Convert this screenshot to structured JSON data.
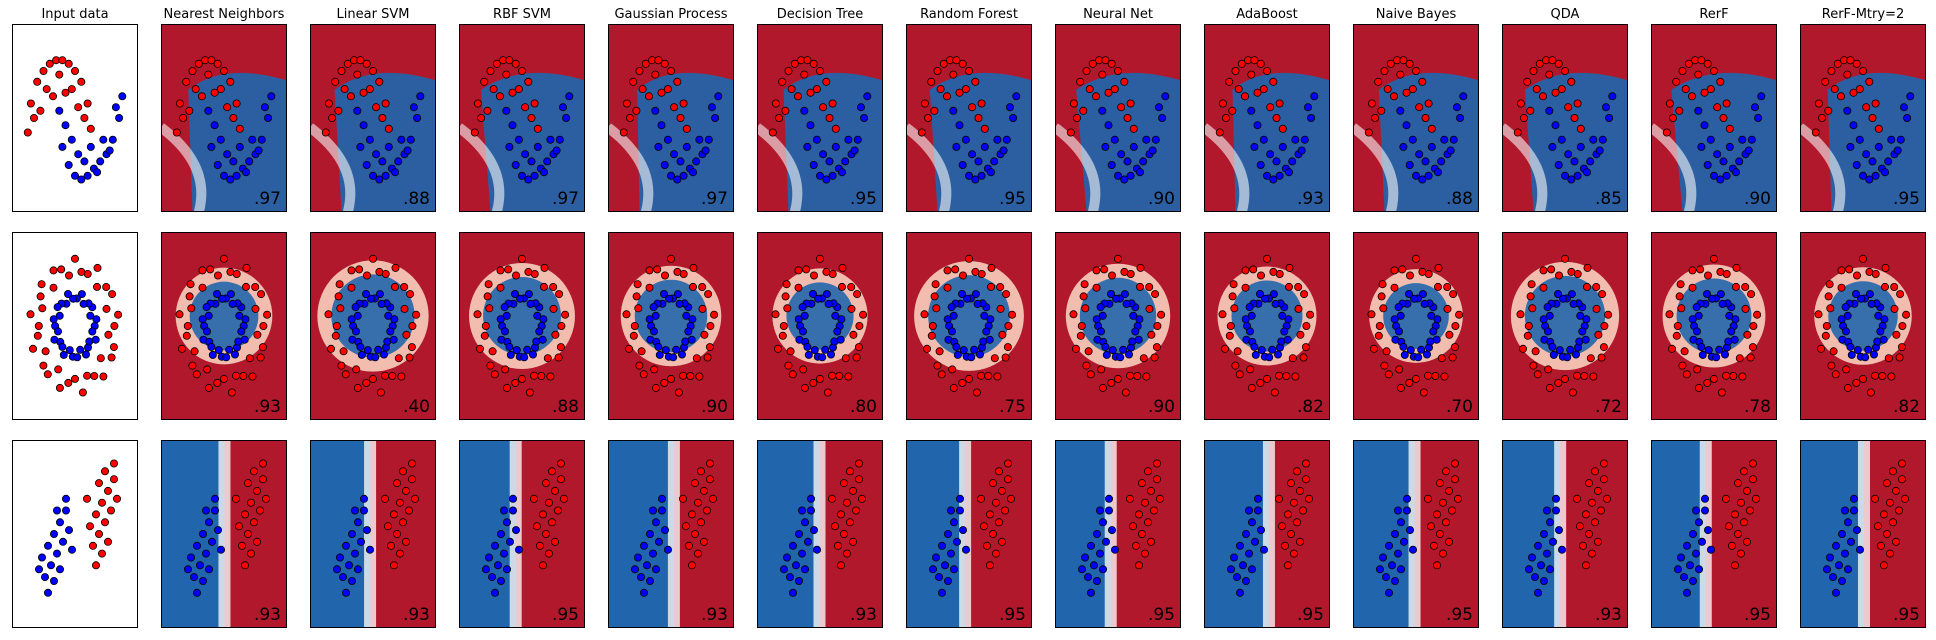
{
  "figure": {
    "title": "",
    "colors": {
      "class_red": "#ff0000",
      "class_blue": "#0000ff",
      "bg_red": "#b2182b",
      "bg_blue": "#2166ac"
    }
  },
  "chart_data": {
    "type": "scatter",
    "grid": false,
    "columns": [
      "Input data",
      "Nearest Neighbors",
      "Linear SVM",
      "RBF SVM",
      "Gaussian Process",
      "Decision Tree",
      "Random Forest",
      "Neural Net",
      "AdaBoost",
      "Naive Bayes",
      "QDA",
      "RerF",
      "RerF-Mtry=2"
    ],
    "rows": [
      {
        "dataset": "moons",
        "scores": [
          "",
          ".97",
          ".88",
          ".97",
          ".97",
          ".95",
          ".95",
          ".90",
          ".93",
          ".88",
          ".85",
          ".90",
          ".95"
        ]
      },
      {
        "dataset": "circles",
        "scores": [
          "",
          ".93",
          ".40",
          ".88",
          ".90",
          ".80",
          ".75",
          ".90",
          ".82",
          ".70",
          ".72",
          ".78",
          ".82"
        ]
      },
      {
        "dataset": "linear",
        "scores": [
          "",
          ".93",
          ".93",
          ".95",
          ".93",
          ".93",
          ".95",
          ".95",
          ".95",
          ".95",
          ".93",
          ".95",
          ".95"
        ]
      }
    ],
    "points": [
      {
        "dataset": "moons",
        "series": [
          {
            "class": "red",
            "x": [
              -0.9,
              -0.7,
              -0.5,
              -0.3,
              -0.1,
              0.1,
              0.3,
              0.5,
              0.7,
              0.9,
              -0.8,
              -0.4,
              0.0,
              0.4,
              0.8,
              -0.6,
              0.6,
              -1.0,
              1.0,
              -0.2,
              0.2
            ],
            "y": [
              0.4,
              0.7,
              0.85,
              0.95,
              1.0,
              1.0,
              0.95,
              0.85,
              0.7,
              0.4,
              0.2,
              0.6,
              0.8,
              0.6,
              0.2,
              0.3,
              0.35,
              0.0,
              0.05,
              0.5,
              0.55
            ]
          },
          {
            "class": "blue",
            "x": [
              0.1,
              0.3,
              0.5,
              0.7,
              0.9,
              1.1,
              1.3,
              1.5,
              1.7,
              1.9,
              0.2,
              0.6,
              1.0,
              1.4,
              1.8,
              0.4,
              1.2,
              0.0,
              2.0,
              0.8,
              1.6
            ],
            "y": [
              -0.2,
              -0.45,
              -0.6,
              -0.65,
              -0.6,
              -0.5,
              -0.4,
              -0.3,
              -0.1,
              0.2,
              0.1,
              -0.3,
              -0.2,
              -0.1,
              0.35,
              -0.1,
              -0.55,
              0.3,
              0.5,
              -0.4,
              -0.25
            ]
          }
        ]
      },
      {
        "dataset": "circles",
        "series": [
          {
            "class": "red",
            "r": 1.0,
            "n": 36
          },
          {
            "class": "blue",
            "r": 0.5,
            "n": 30
          }
        ]
      },
      {
        "dataset": "linear",
        "series": [
          {
            "class": "red",
            "x": [
              0.8,
              1.0,
              1.2,
              1.4,
              1.6,
              0.9,
              1.1,
              1.3,
              1.5,
              1.7,
              1.0,
              1.2,
              1.4,
              0.7,
              1.6,
              1.3,
              1.1
            ],
            "y": [
              0.2,
              0.5,
              0.8,
              1.1,
              1.4,
              -0.3,
              0.0,
              0.3,
              0.6,
              0.9,
              -0.8,
              -0.5,
              -0.2,
              0.9,
              1.8,
              1.6,
              1.3
            ]
          },
          {
            "class": "blue",
            "x": [
              -0.8,
              -0.6,
              -0.4,
              -0.2,
              0.0,
              -0.7,
              -0.5,
              -0.3,
              -0.1,
              0.1,
              -0.6,
              -0.4,
              -0.2,
              -0.9,
              0.2,
              -0.3,
              0.0
            ],
            "y": [
              -0.6,
              -0.3,
              0.0,
              0.3,
              0.6,
              -1.1,
              -0.8,
              -0.5,
              -0.2,
              0.1,
              -1.5,
              -1.2,
              -0.9,
              -0.9,
              -0.4,
              0.6,
              0.9
            ]
          }
        ]
      }
    ]
  }
}
